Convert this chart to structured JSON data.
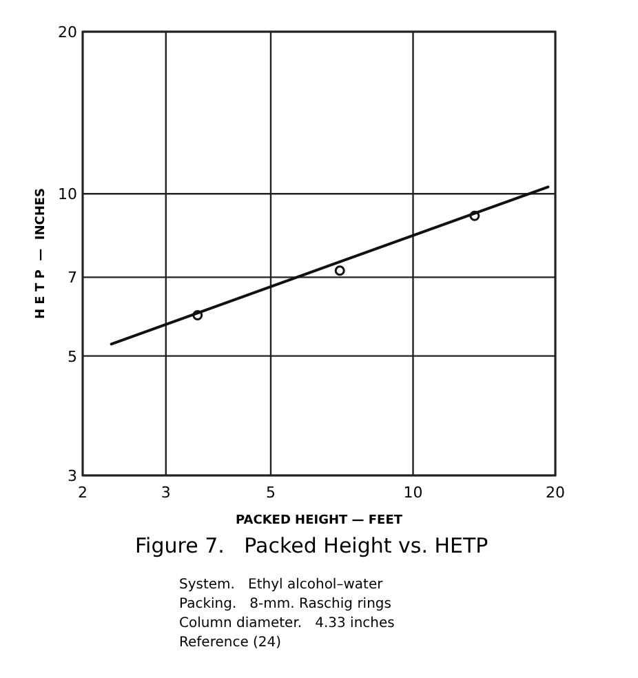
{
  "chart_data": {
    "type": "scatter",
    "title": "Figure 7.   Packed Height vs. HETP",
    "xlabel": "PACKED HEIGHT — FEET",
    "ylabel": "H E T P  —  INCHES",
    "log": "xy",
    "grid": true,
    "xlim": [
      2,
      20
    ],
    "ylim": [
      3,
      20
    ],
    "xticks": [
      2,
      3,
      5,
      10,
      20
    ],
    "yticks": [
      3,
      5,
      7,
      10,
      20
    ],
    "series": [
      {
        "color": "#111111",
        "marker": "circle",
        "x": [
          3.5,
          7.0,
          13.5
        ],
        "values": [
          5.95,
          7.2,
          9.1
        ]
      },
      {
        "type": "line",
        "color": "#111111",
        "line_style": "solid",
        "x": [
          2.3,
          19.3
        ],
        "values": [
          5.26,
          10.3
        ]
      }
    ],
    "annotations": [
      "System.   Ethyl alcohol–water",
      "Packing.   8-mm. Raschig rings",
      "Column diameter.   4.33 inches",
      "Reference (24)"
    ]
  }
}
